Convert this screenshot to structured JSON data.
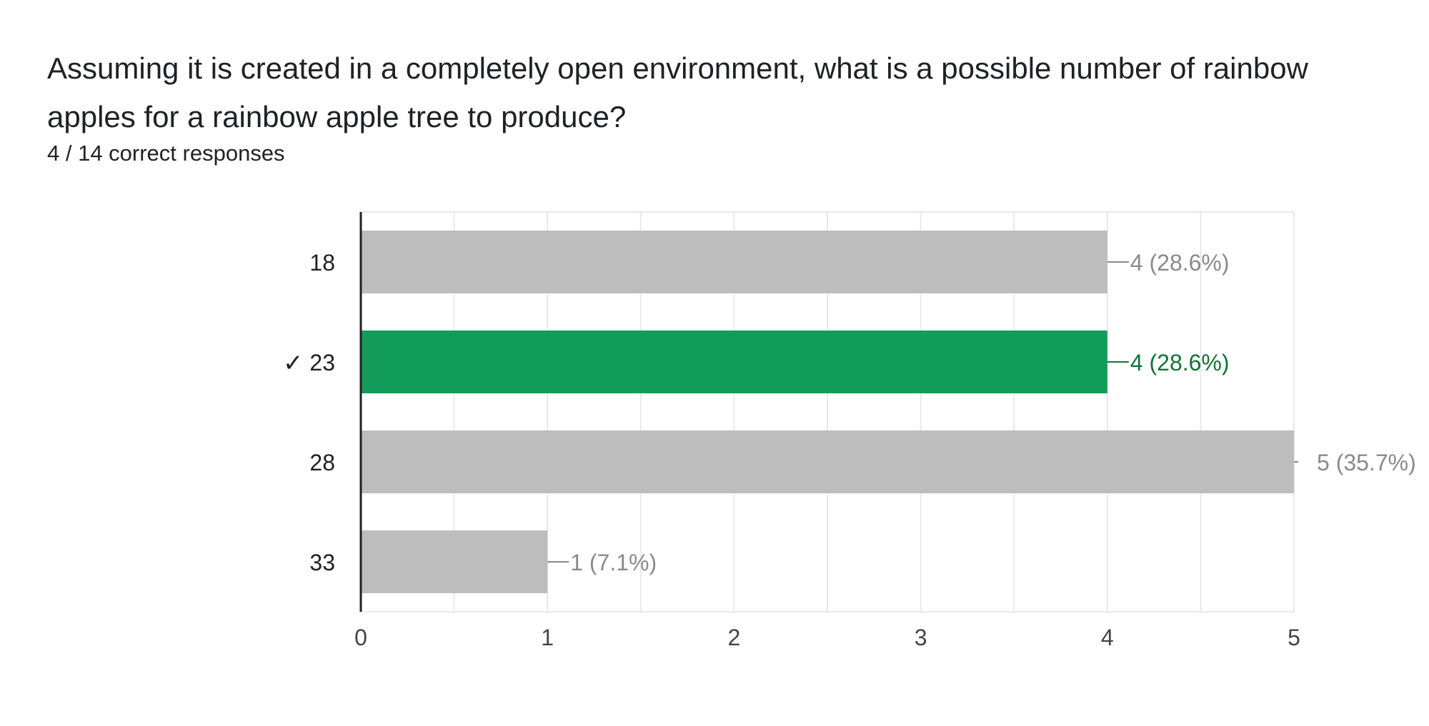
{
  "question": {
    "title": "Assuming it is created in a completely open environment, what is a possible number of rainbow apples for a rainbow apple tree to produce?",
    "summary": "4 / 14 correct responses"
  },
  "colors": {
    "bar_default": "#bdbdbd",
    "bar_correct": "#129c5a",
    "label_default": "#8a8a8a",
    "label_correct": "#137333",
    "text": "#202124",
    "grid": "#e8e8e8",
    "axis": "#202124"
  },
  "chart_data": {
    "type": "bar",
    "orientation": "horizontal",
    "categories": [
      "18",
      "23",
      "28",
      "33"
    ],
    "values": [
      4,
      4,
      5,
      1
    ],
    "value_labels": [
      "4 (28.6%)",
      "4 (28.6%)",
      "5 (35.7%)",
      "1 (7.1%)"
    ],
    "correct": [
      false,
      true,
      false,
      false
    ],
    "correct_mark": "✓",
    "xlim": [
      0,
      5
    ],
    "x_ticks": [
      "0",
      "1",
      "2",
      "3",
      "4",
      "5"
    ],
    "grid": true
  }
}
